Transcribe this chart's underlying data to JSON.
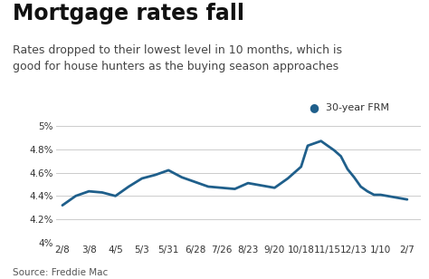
{
  "title": "Mortgage rates fall",
  "subtitle": "Rates dropped to their lowest level in 10 months, which is\ngood for house hunters as the buying season approaches",
  "legend_label": "30-year FRM",
  "source": "Source: Freddie Mac",
  "x_labels": [
    "2/8",
    "3/8",
    "4/5",
    "5/3",
    "5/31",
    "6/28",
    "7/26",
    "8/23",
    "9/20",
    "10/18",
    "11/15",
    "12/13",
    "1/10",
    "2/7"
  ],
  "x_data": [
    0,
    4,
    8,
    12,
    16,
    20,
    24,
    28,
    32,
    36,
    40,
    44,
    48,
    52
  ],
  "x_pts": [
    0,
    2,
    4,
    6,
    8,
    10,
    12,
    14,
    16,
    18,
    20,
    22,
    24,
    26,
    28,
    30,
    32,
    34,
    36,
    37,
    38,
    39,
    40,
    41,
    42,
    43,
    44,
    45,
    46,
    47,
    48,
    50,
    52
  ],
  "y_pts": [
    4.32,
    4.4,
    4.44,
    4.43,
    4.4,
    4.48,
    4.55,
    4.58,
    4.62,
    4.56,
    4.52,
    4.48,
    4.47,
    4.46,
    4.51,
    4.49,
    4.47,
    4.55,
    4.65,
    4.83,
    4.85,
    4.87,
    4.83,
    4.79,
    4.74,
    4.63,
    4.56,
    4.48,
    4.44,
    4.41,
    4.41,
    4.39,
    4.37
  ],
  "line_color": "#1f5f8b",
  "dot_color": "#1f5f8b",
  "background_color": "#ffffff",
  "ylim": [
    4.0,
    5.05
  ],
  "yticks": [
    4.0,
    4.2,
    4.4,
    4.6,
    4.8,
    5.0
  ],
  "ytick_labels": [
    "4%",
    "4.2%",
    "4.4%",
    "4.6%",
    "4.8%",
    "5%"
  ],
  "title_fontsize": 17,
  "subtitle_fontsize": 9,
  "tick_fontsize": 7.5,
  "source_fontsize": 7.5,
  "grid_color": "#cccccc"
}
